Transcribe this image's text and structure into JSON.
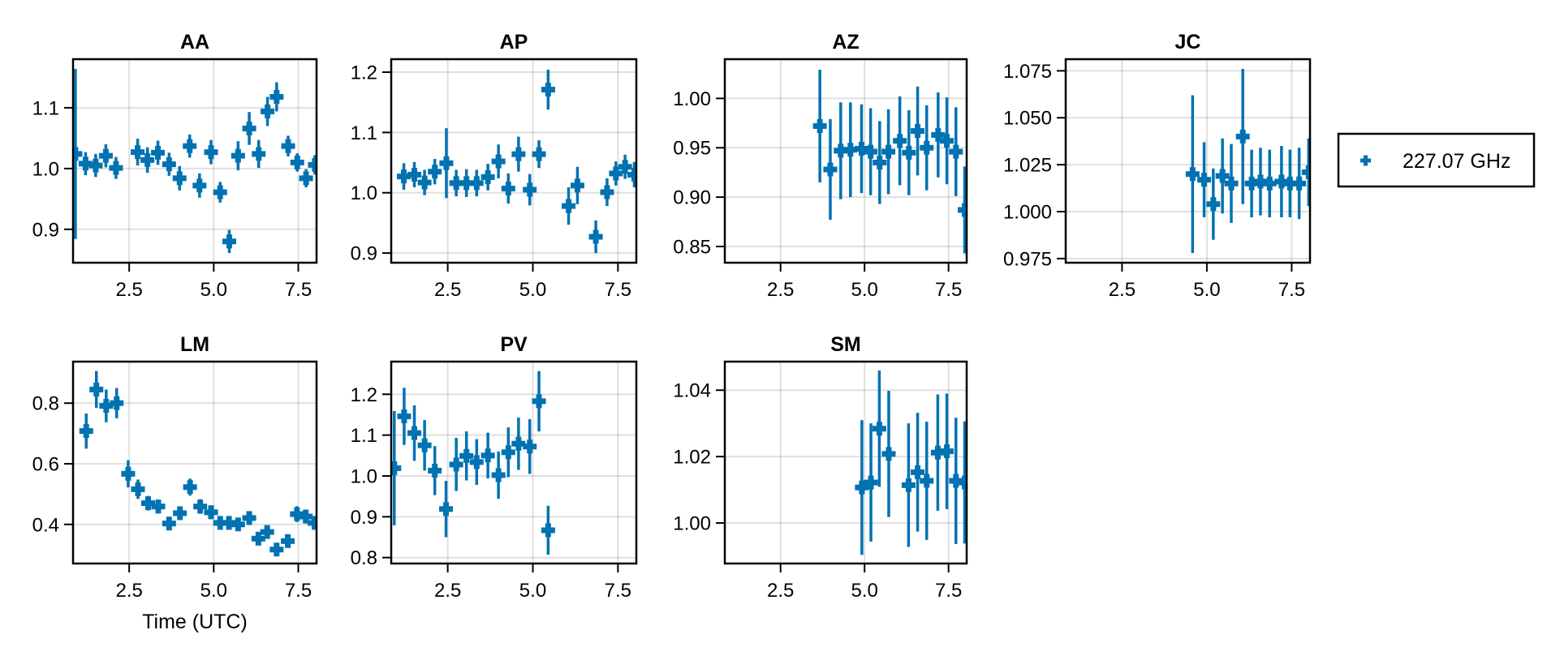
{
  "chart_data": {
    "type": "scatter",
    "style": "errorbar-crosses",
    "marker_color": "#0072B2",
    "legend": {
      "entries": [
        "227.07 GHz"
      ],
      "placement": "right"
    },
    "xlabel": "Time (UTC)",
    "grid": true,
    "panels": [
      {
        "title": "AA",
        "xlim": [
          0.84,
          8.04
        ],
        "ylim": [
          0.845,
          1.18
        ],
        "xticks": [
          "2.5",
          "5.0",
          "7.5"
        ],
        "xtick_values": [
          2.5,
          5.0,
          7.5
        ],
        "yticks": [
          "0.9",
          "1.0",
          "1.1"
        ],
        "ytick_values": [
          0.9,
          1.0,
          1.1
        ],
        "show_xlabel": false,
        "series": [
          {
            "name": "227.07 GHz",
            "x": [
              0.91,
              1.21,
              1.51,
              1.81,
              2.11,
              2.75,
              3.04,
              3.35,
              3.68,
              3.99,
              4.29,
              4.58,
              4.92,
              5.19,
              5.46,
              5.72,
              6.05,
              6.33,
              6.59,
              6.86,
              7.2,
              7.47,
              7.73,
              7.99
            ],
            "y": [
              1.024,
              1.008,
              1.005,
              1.021,
              1.001,
              1.027,
              1.014,
              1.026,
              1.007,
              0.984,
              1.037,
              0.972,
              1.027,
              0.961,
              0.88,
              1.021,
              1.066,
              1.024,
              1.094,
              1.118,
              1.037,
              1.01,
              0.984,
              1.006
            ],
            "yerr": [
              0.14,
              0.019,
              0.019,
              0.019,
              0.018,
              0.022,
              0.021,
              0.02,
              0.019,
              0.02,
              0.019,
              0.02,
              0.02,
              0.017,
              0.019,
              0.024,
              0.027,
              0.023,
              0.024,
              0.024,
              0.017,
              0.015,
              0.015,
              0.016
            ]
          }
        ]
      },
      {
        "title": "AP",
        "xlim": [
          0.84,
          8.04
        ],
        "ylim": [
          0.884,
          1.2215
        ],
        "xticks": [
          "2.5",
          "5.0",
          "7.5"
        ],
        "xtick_values": [
          2.5,
          5.0,
          7.5
        ],
        "yticks": [
          "0.9",
          "1.0",
          "1.1",
          "1.2"
        ],
        "ytick_values": [
          0.9,
          1.0,
          1.1,
          1.2
        ],
        "show_xlabel": false,
        "series": [
          {
            "name": "227.07 GHz",
            "x": [
              1.21,
              1.52,
              1.82,
              2.12,
              2.46,
              2.75,
              3.05,
              3.35,
              3.68,
              3.99,
              4.28,
              4.58,
              4.91,
              5.18,
              5.45,
              6.05,
              6.31,
              6.85,
              7.18,
              7.44,
              7.71,
              7.98
            ],
            "y": [
              1.027,
              1.03,
              1.017,
              1.035,
              1.049,
              1.016,
              1.016,
              1.016,
              1.026,
              1.052,
              1.007,
              1.064,
              1.005,
              1.064,
              1.171,
              0.978,
              1.012,
              0.927,
              1.001,
              1.032,
              1.043,
              1.03
            ],
            "yerr": [
              0.022,
              0.021,
              0.021,
              0.021,
              0.058,
              0.022,
              0.023,
              0.022,
              0.022,
              0.028,
              0.025,
              0.029,
              0.026,
              0.023,
              0.033,
              0.031,
              0.031,
              0.027,
              0.023,
              0.02,
              0.02,
              0.021
            ]
          }
        ]
      },
      {
        "title": "AZ",
        "xlim": [
          0.84,
          8.04
        ],
        "ylim": [
          0.8336,
          1.0397
        ],
        "xticks": [
          "2.5",
          "5.0",
          "7.5"
        ],
        "xtick_values": [
          2.5,
          5.0,
          7.5
        ],
        "yticks": [
          "0.85",
          "0.90",
          "0.95",
          "1.00"
        ],
        "ytick_values": [
          0.85,
          0.9,
          0.95,
          1.0
        ],
        "show_xlabel": false,
        "series": [
          {
            "name": "227.07 GHz",
            "x": [
              3.67,
              3.98,
              4.29,
              4.58,
              4.91,
              5.18,
              5.45,
              5.71,
              6.05,
              6.32,
              6.58,
              6.85,
              7.19,
              7.45,
              7.72,
              7.98
            ],
            "y": [
              0.972,
              0.928,
              0.947,
              0.948,
              0.949,
              0.946,
              0.935,
              0.946,
              0.957,
              0.945,
              0.967,
              0.95,
              0.963,
              0.957,
              0.946,
              0.887
            ],
            "yerr": [
              0.057,
              0.051,
              0.049,
              0.048,
              0.045,
              0.044,
              0.042,
              0.043,
              0.045,
              0.043,
              0.045,
              0.043,
              0.043,
              0.044,
              0.045,
              0.044
            ]
          }
        ]
      },
      {
        "title": "JC",
        "xlim": [
          0.84,
          8.04
        ],
        "ylim": [
          0.9728,
          1.0812
        ],
        "xticks": [
          "2.5",
          "5.0",
          "7.5"
        ],
        "xtick_values": [
          2.5,
          5.0,
          7.5
        ],
        "yticks": [
          "0.975",
          "1.000",
          "1.025",
          "1.050",
          "1.075"
        ],
        "ytick_values": [
          0.975,
          1.0,
          1.025,
          1.05,
          1.075
        ],
        "show_xlabel": false,
        "series": [
          {
            "name": "227.07 GHz",
            "x": [
              4.58,
              4.92,
              5.19,
              5.46,
              5.72,
              6.06,
              6.32,
              6.58,
              6.85,
              7.2,
              7.45,
              7.72,
              8.0
            ],
            "y": [
              1.02,
              1.017,
              1.004,
              1.019,
              1.015,
              1.04,
              1.015,
              1.016,
              1.015,
              1.016,
              1.015,
              1.015,
              1.021
            ],
            "yerr": [
              0.042,
              0.02,
              0.019,
              0.02,
              0.021,
              0.036,
              0.018,
              0.018,
              0.018,
              0.019,
              0.018,
              0.019,
              0.018
            ]
          }
        ]
      },
      {
        "title": "LM",
        "xlim": [
          0.84,
          8.04
        ],
        "ylim": [
          0.271,
          0.937
        ],
        "xticks": [
          "2.5",
          "5.0",
          "7.5"
        ],
        "xtick_values": [
          2.5,
          5.0,
          7.5
        ],
        "yticks": [
          "0.4",
          "0.6",
          "0.8"
        ],
        "ytick_values": [
          0.4,
          0.6,
          0.8
        ],
        "show_xlabel": true,
        "series": [
          {
            "name": "227.07 GHz",
            "x": [
              1.23,
              1.53,
              1.82,
              2.13,
              2.47,
              2.76,
              3.06,
              3.36,
              3.68,
              4.0,
              4.3,
              4.6,
              4.92,
              5.19,
              5.45,
              5.72,
              6.05,
              6.32,
              6.58,
              6.86,
              7.19,
              7.46,
              7.72,
              7.98
            ],
            "y": [
              0.708,
              0.845,
              0.791,
              0.8,
              0.567,
              0.516,
              0.47,
              0.459,
              0.403,
              0.437,
              0.523,
              0.459,
              0.44,
              0.405,
              0.405,
              0.4,
              0.421,
              0.353,
              0.375,
              0.317,
              0.345,
              0.434,
              0.426,
              0.405
            ],
            "yerr": [
              0.058,
              0.061,
              0.054,
              0.05,
              0.045,
              0.032,
              0.024,
              0.023,
              0.017,
              0.022,
              0.028,
              0.024,
              0.023,
              0.019,
              0.019,
              0.017,
              0.02,
              0.016,
              0.016,
              0.016,
              0.018,
              0.026,
              0.023,
              0.022
            ]
          }
        ]
      },
      {
        "title": "PV",
        "xlim": [
          0.84,
          8.04
        ],
        "ylim": [
          0.7855,
          1.28
        ],
        "xticks": [
          "2.5",
          "5.0",
          "7.5"
        ],
        "xtick_values": [
          2.5,
          5.0,
          7.5
        ],
        "yticks": [
          "0.8",
          "0.9",
          "1.0",
          "1.1",
          "1.2"
        ],
        "ytick_values": [
          0.8,
          0.9,
          1.0,
          1.1,
          1.2
        ],
        "show_xlabel": false,
        "series": [
          {
            "name": "227.07 GHz",
            "x": [
              0.93,
              1.22,
              1.52,
              1.82,
              2.12,
              2.45,
              2.75,
              3.05,
              3.35,
              3.68,
              3.99,
              4.28,
              4.58,
              4.91,
              5.18,
              5.45
            ],
            "y": [
              1.019,
              1.146,
              1.105,
              1.075,
              1.013,
              0.919,
              1.028,
              1.049,
              1.034,
              1.05,
              1.002,
              1.058,
              1.079,
              1.072,
              1.183,
              0.867
            ],
            "yerr": [
              0.14,
              0.07,
              0.068,
              0.062,
              0.06,
              0.069,
              0.065,
              0.06,
              0.056,
              0.056,
              0.058,
              0.061,
              0.064,
              0.067,
              0.074,
              0.06
            ]
          }
        ]
      },
      {
        "title": "SM",
        "xlim": [
          0.84,
          8.04
        ],
        "ylim": [
          0.9878,
          1.0486
        ],
        "xticks": [
          "2.5",
          "5.0",
          "7.5"
        ],
        "xtick_values": [
          2.5,
          5.0,
          7.5
        ],
        "yticks": [
          "1.00",
          "1.02",
          "1.04"
        ],
        "ytick_values": [
          1.0,
          1.02,
          1.04
        ],
        "show_xlabel": false,
        "series": [
          {
            "name": "227.07 GHz",
            "x": [
              4.92,
              5.19,
              5.44,
              5.72,
              6.31,
              6.58,
              6.85,
              7.18,
              7.45,
              7.72,
              7.98
            ],
            "y": [
              1.0107,
              1.0122,
              1.0284,
              1.0208,
              1.0114,
              1.0153,
              1.0127,
              1.0212,
              1.0216,
              1.0127,
              1.0122
            ],
            "yerr": [
              0.0203,
              0.0178,
              0.0175,
              0.019,
              0.0186,
              0.0179,
              0.0178,
              0.0175,
              0.0174,
              0.019,
              0.0184
            ]
          }
        ]
      }
    ]
  }
}
